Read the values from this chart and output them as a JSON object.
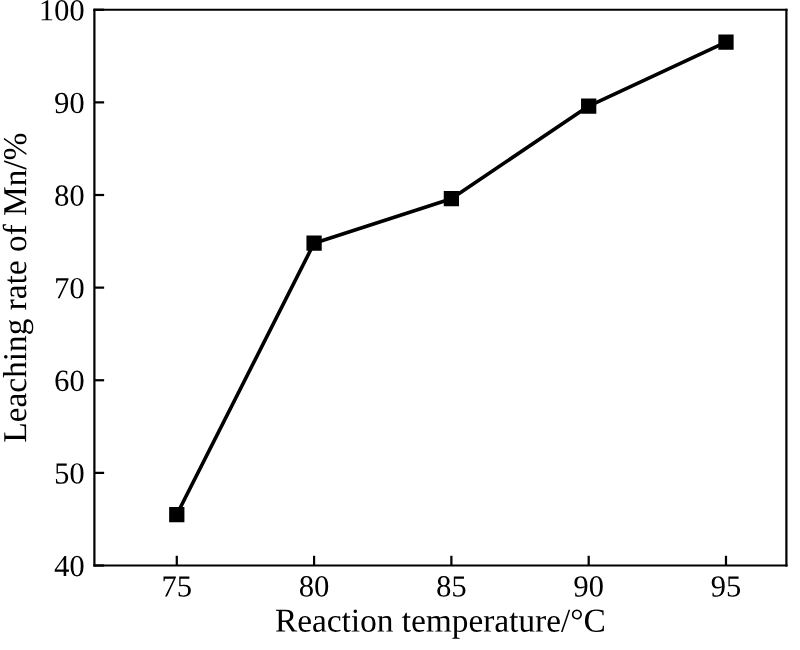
{
  "chart_data": {
    "type": "line",
    "xlabel": "Reaction temperature/°C",
    "ylabel": "Leaching rate of Mn/%",
    "x": [
      75,
      80,
      85,
      90,
      95
    ],
    "series": [
      {
        "color": "#000000",
        "values": [
          45.5,
          74.8,
          79.6,
          89.6,
          96.5
        ]
      }
    ],
    "xlim": [
      72,
      97.2
    ],
    "ylim": [
      40,
      100
    ],
    "xticks": [
      75,
      80,
      85,
      90,
      95
    ],
    "yticks": [
      40,
      50,
      60,
      70,
      80,
      90,
      100
    ],
    "marker": "square",
    "line_style": "solid",
    "grid": false,
    "legend": false
  }
}
